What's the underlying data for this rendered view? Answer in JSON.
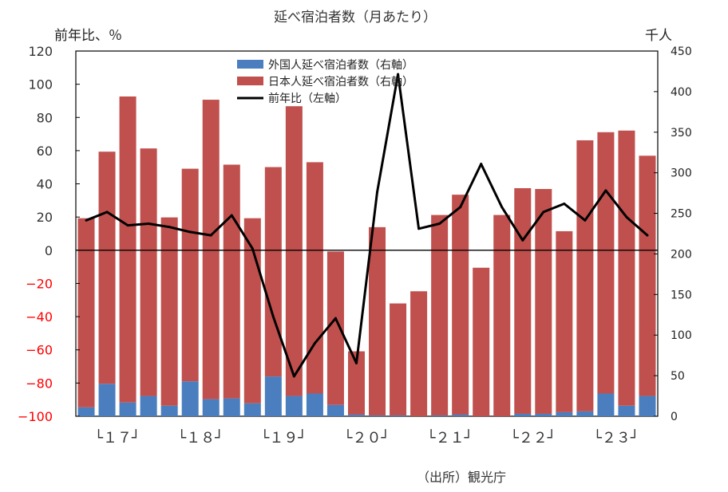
{
  "chart_data": {
    "type": "bar",
    "title": "延べ宿泊者数（月あたり）",
    "ylabel_left": "前年比、％",
    "ylabel_right": "千人",
    "source": "（出所）観光庁",
    "y_left": {
      "ticks": [
        120,
        100,
        80,
        60,
        40,
        20,
        0,
        -20,
        -40,
        -60,
        -80,
        -100
      ],
      "ylim": [
        -100,
        120
      ]
    },
    "y_right": {
      "ticks": [
        450,
        400,
        350,
        300,
        250,
        200,
        150,
        100,
        50,
        0
      ],
      "ylim": [
        0,
        450
      ]
    },
    "x_group_labels": [
      "└１７┘",
      "└１８┘",
      "└１９┘",
      "└２０┘",
      "└２１┘",
      "└２２┘",
      "└２３┘"
    ],
    "series": [
      {
        "name": "外国人延べ宿泊者数（右軸）",
        "type": "bar",
        "axis": "right",
        "stacked": true,
        "color": "#4a7ebf",
        "values": [
          11,
          40,
          17,
          25,
          13,
          43,
          21,
          22,
          16,
          49,
          25,
          28,
          14,
          2,
          1,
          1,
          0,
          1,
          2,
          0,
          0,
          3,
          3,
          5,
          6,
          28,
          13,
          25
        ]
      },
      {
        "name": "日本人延べ宿泊者数（右軸）",
        "type": "bar",
        "axis": "right",
        "stacked": true,
        "color": "#c0504d",
        "values": [
          233,
          286,
          377,
          305,
          232,
          262,
          369,
          288,
          228,
          258,
          357,
          285,
          189,
          78,
          232,
          138,
          154,
          247,
          271,
          183,
          248,
          278,
          277,
          223,
          334,
          322,
          339,
          296
        ]
      },
      {
        "name": "前年比（左軸）",
        "type": "line",
        "axis": "left",
        "color": "#000000",
        "values": [
          18,
          23,
          15,
          16,
          14,
          11,
          9,
          21,
          1,
          -40,
          -76,
          -56,
          -41,
          -68,
          35,
          106,
          13,
          16,
          26,
          52,
          26,
          6,
          23,
          28,
          18,
          36,
          20,
          9
        ]
      }
    ],
    "negative_tick_color": "#ff0000",
    "legend_position": "top-center",
    "grid": false
  }
}
